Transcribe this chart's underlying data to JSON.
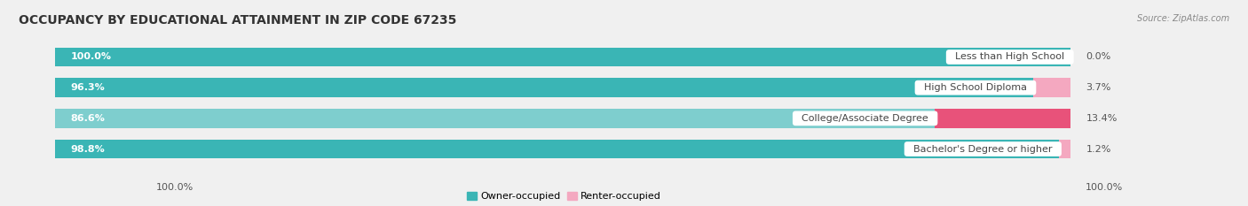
{
  "title": "OCCUPANCY BY EDUCATIONAL ATTAINMENT IN ZIP CODE 67235",
  "source": "Source: ZipAtlas.com",
  "categories": [
    "Less than High School",
    "High School Diploma",
    "College/Associate Degree",
    "Bachelor's Degree or higher"
  ],
  "owner_values": [
    100.0,
    96.3,
    86.6,
    98.8
  ],
  "renter_values": [
    0.0,
    3.7,
    13.4,
    1.2
  ],
  "owner_color": "#3ab5b5",
  "owner_color_light": "#7ecece",
  "renter_colors": [
    "#f4a8c0",
    "#f4a8c0",
    "#e8527a",
    "#f4a8c0"
  ],
  "bg_color": "#f0f0f0",
  "bar_bg_color": "#e0e0e0",
  "title_fontsize": 10,
  "label_fontsize": 8,
  "value_fontsize": 8,
  "bar_height": 0.62,
  "x_left_label": "100.0%",
  "x_right_label": "100.0%",
  "legend_owner": "Owner-occupied",
  "legend_renter": "Renter-occupied",
  "legend_owner_color": "#3ab5b5",
  "legend_renter_color": "#f4a8c0"
}
